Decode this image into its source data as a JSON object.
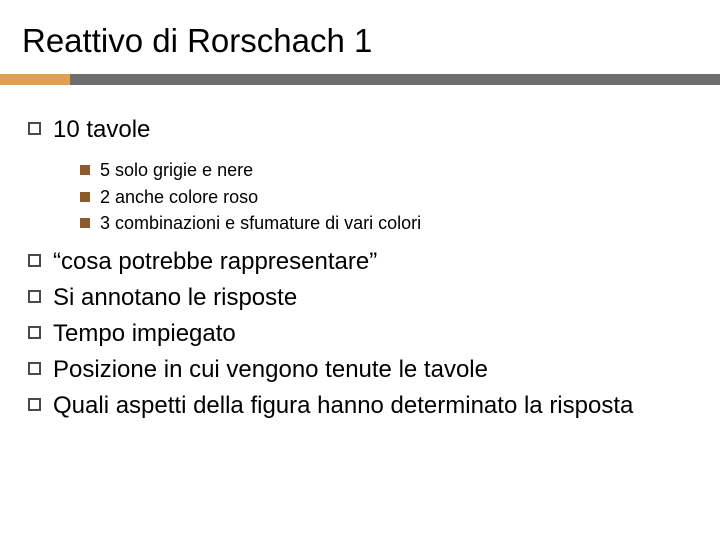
{
  "title": "Reattivo di Rorschach 1",
  "accent": {
    "left_color": "#e0a050",
    "right_color": "#6e6e6e"
  },
  "bullet_colors": {
    "level1_border": "#4a4a4a",
    "level2_fill": "#8e5a2a"
  },
  "fonts": {
    "title_size": 33,
    "level1_size": 24,
    "level2_size": 18
  },
  "items": [
    {
      "text": "10 tavole",
      "sub": [
        {
          "text": "5 solo grigie e nere"
        },
        {
          "text": "2 anche colore roso"
        },
        {
          "text": "3 combinazioni e sfumature di vari colori"
        }
      ]
    },
    {
      "text": "“cosa potrebbe rappresentare”"
    },
    {
      "text": "Si annotano le risposte"
    },
    {
      "text": "Tempo impiegato"
    },
    {
      "text": "Posizione in cui vengono tenute le tavole"
    },
    {
      "text": "Quali aspetti della figura hanno determinato la risposta"
    }
  ]
}
